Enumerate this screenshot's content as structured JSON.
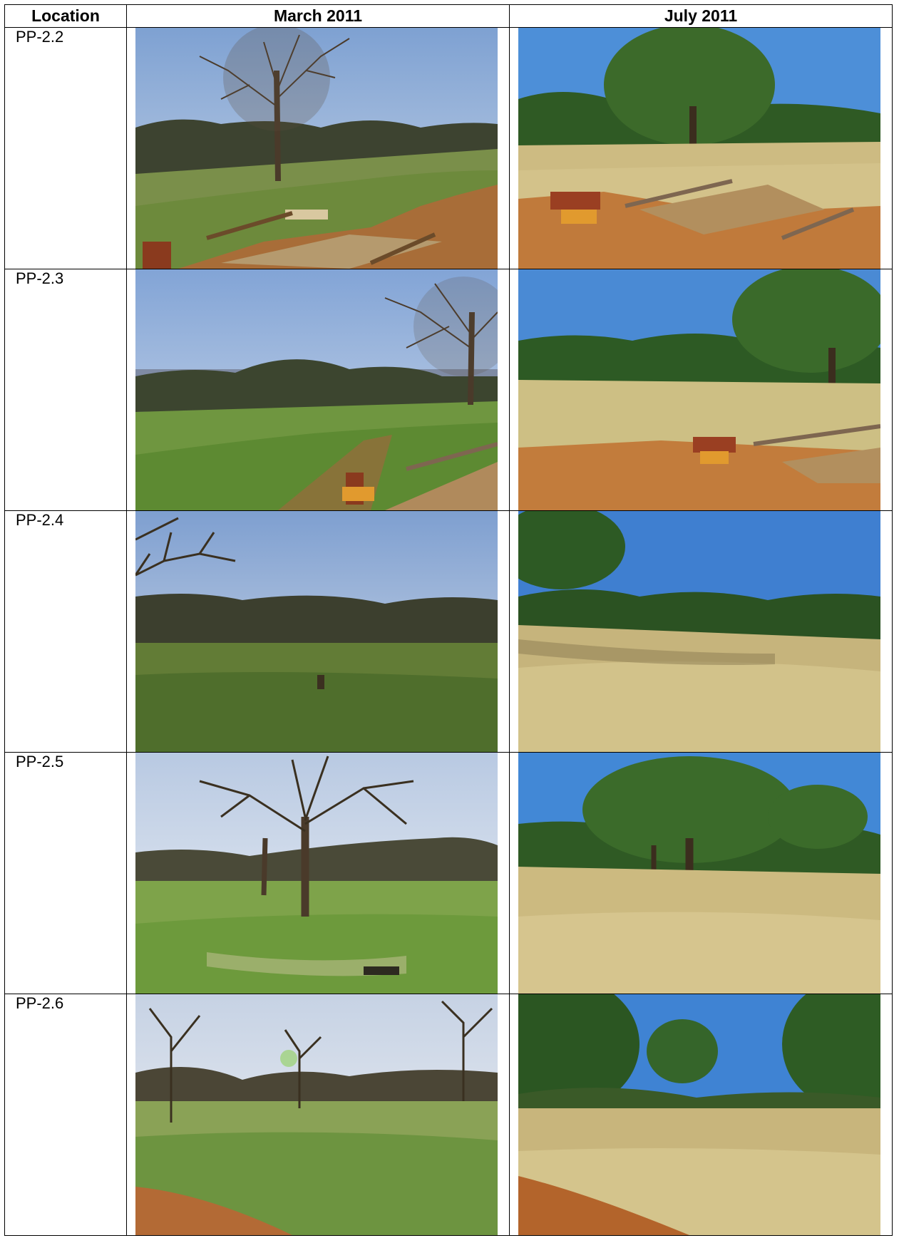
{
  "table": {
    "headers": [
      "Location",
      "March 2011",
      "July 2011"
    ],
    "rows": [
      {
        "location": "PP-2.2",
        "march": "scene-oak-trail-bench",
        "july": "scene-oak-trail-bench"
      },
      {
        "location": "PP-2.3",
        "march": "scene-view-bench",
        "july": "scene-view-bench"
      },
      {
        "location": "PP-2.4",
        "march": "scene-open-field",
        "july": "scene-open-field"
      },
      {
        "location": "PP-2.5",
        "march": "scene-large-oak",
        "july": "scene-large-oak"
      },
      {
        "location": "PP-2.6",
        "march": "scene-oak-woodland",
        "july": "scene-oak-woodland"
      }
    ]
  },
  "colors": {
    "march_sky": "#a9c2e2",
    "march_grass": "#6a8a3a",
    "july_sky": "#3f86d6",
    "july_grass": "#c9b67a",
    "dirt": "#b5642d"
  }
}
